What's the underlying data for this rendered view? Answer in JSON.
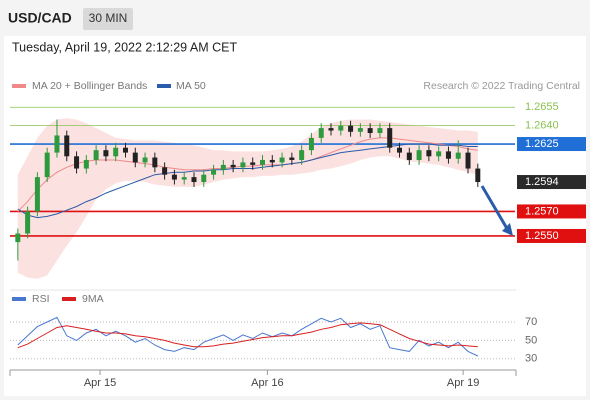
{
  "header": {
    "symbol": "USD/CAD",
    "timeframe": "30 MIN",
    "date": "Tuesday, April 19, 2022 2:12:29 AM CET"
  },
  "chart_data": [
    {
      "type": "candlestick",
      "credit": "Research © 2022 Trading Central",
      "xlim": [
        -0.8,
        50.8
      ],
      "ylim": [
        1.251,
        1.2665
      ],
      "up_color": "#2e9a3e",
      "down_color": "#222222",
      "open": [
        1.2545,
        1.2552,
        1.257,
        1.2598,
        1.2618,
        1.2632,
        1.2615,
        1.2605,
        1.2612,
        1.262,
        1.2615,
        1.2622,
        1.2618,
        1.261,
        1.2614,
        1.2606,
        1.26,
        1.2596,
        1.2598,
        1.2594,
        1.26,
        1.2604,
        1.2608,
        1.2606,
        1.261,
        1.2608,
        1.2612,
        1.261,
        1.2614,
        1.2612,
        1.262,
        1.263,
        1.2638,
        1.2636,
        1.264,
        1.2635,
        1.2638,
        1.2634,
        1.2638,
        1.2622,
        1.2618,
        1.2612,
        1.262,
        1.2615,
        1.2619,
        1.2613,
        1.2618,
        1.2605
      ],
      "high": [
        1.2556,
        1.2574,
        1.2602,
        1.2622,
        1.2645,
        1.2636,
        1.2619,
        1.2616,
        1.2624,
        1.2624,
        1.2626,
        1.2626,
        1.2622,
        1.2618,
        1.2618,
        1.261,
        1.2604,
        1.2602,
        1.2602,
        1.2604,
        1.2608,
        1.2612,
        1.2612,
        1.2614,
        1.2614,
        1.2616,
        1.2616,
        1.2618,
        1.2618,
        1.2624,
        1.2634,
        1.2642,
        1.2642,
        1.2644,
        1.2644,
        1.2642,
        1.2642,
        1.2642,
        1.2642,
        1.2626,
        1.2622,
        1.2624,
        1.2624,
        1.2623,
        1.2623,
        1.2628,
        1.2622,
        1.2609
      ],
      "low": [
        1.253,
        1.2548,
        1.2566,
        1.2594,
        1.2614,
        1.2611,
        1.2601,
        1.2601,
        1.2608,
        1.2611,
        1.2611,
        1.2614,
        1.2606,
        1.2606,
        1.2602,
        1.2596,
        1.2592,
        1.2592,
        1.259,
        1.259,
        1.2596,
        1.26,
        1.2602,
        1.2602,
        1.2604,
        1.2604,
        1.2606,
        1.2606,
        1.2608,
        1.2608,
        1.2616,
        1.2626,
        1.2632,
        1.2632,
        1.2631,
        1.2631,
        1.263,
        1.263,
        1.2618,
        1.2614,
        1.2608,
        1.2608,
        1.2611,
        1.2611,
        1.2609,
        1.2609,
        1.2601,
        1.259
      ],
      "close": [
        1.2552,
        1.257,
        1.2598,
        1.2618,
        1.2632,
        1.2615,
        1.2605,
        1.2612,
        1.262,
        1.2615,
        1.2622,
        1.2618,
        1.261,
        1.2614,
        1.2606,
        1.26,
        1.2596,
        1.2598,
        1.2594,
        1.26,
        1.2604,
        1.2608,
        1.2606,
        1.261,
        1.2608,
        1.2612,
        1.261,
        1.2614,
        1.2612,
        1.262,
        1.263,
        1.2638,
        1.2636,
        1.264,
        1.2635,
        1.2638,
        1.2634,
        1.2638,
        1.2622,
        1.2618,
        1.2612,
        1.262,
        1.2615,
        1.2619,
        1.2613,
        1.2618,
        1.2605,
        1.2594
      ],
      "series": [
        {
          "name": "MA 20 + Bollinger Bands",
          "color": "#f08a8a",
          "band_color": "#fbd9d9",
          "values": [
            1.257,
            1.2578,
            1.2588,
            1.2596,
            1.2602,
            1.2606,
            1.2609,
            1.2611,
            1.2612,
            1.2612,
            1.2612,
            1.2611,
            1.261,
            1.2609,
            1.2608,
            1.2606,
            1.2605,
            1.2604,
            1.2604,
            1.2604,
            1.2605,
            1.2605,
            1.2606,
            1.2607,
            1.2607,
            1.2608,
            1.2608,
            1.2608,
            1.2609,
            1.261,
            1.2612,
            1.2615,
            1.2618,
            1.2621,
            1.2624,
            1.2627,
            1.2629,
            1.263,
            1.263,
            1.2629,
            1.2628,
            1.2627,
            1.2626,
            1.2625,
            1.2624,
            1.2623,
            1.2621,
            1.262
          ],
          "upper": [
            1.26,
            1.2615,
            1.263,
            1.264,
            1.2645,
            1.2646,
            1.2645,
            1.2642,
            1.2638,
            1.2634,
            1.263,
            1.2629,
            1.2628,
            1.2628,
            1.2628,
            1.2627,
            1.2626,
            1.2625,
            1.2624,
            1.2622,
            1.262,
            1.262,
            1.2619,
            1.2619,
            1.2619,
            1.2619,
            1.262,
            1.2621,
            1.2623,
            1.2627,
            1.2633,
            1.2639,
            1.2642,
            1.2644,
            1.2645,
            1.2645,
            1.2645,
            1.2644,
            1.2643,
            1.2642,
            1.2641,
            1.264,
            1.2639,
            1.2638,
            1.2637,
            1.2636,
            1.2636,
            1.2635
          ],
          "lower": [
            1.252,
            1.2516,
            1.2515,
            1.2518,
            1.253,
            1.2542,
            1.2553,
            1.2566,
            1.258,
            1.2588,
            1.2593,
            1.2595,
            1.2595,
            1.2594,
            1.2592,
            1.2591,
            1.259,
            1.259,
            1.259,
            1.2592,
            1.2594,
            1.2596,
            1.2597,
            1.2598,
            1.2598,
            1.2599,
            1.2599,
            1.26,
            1.26,
            1.2601,
            1.2602,
            1.2604,
            1.2605,
            1.2607,
            1.2609,
            1.2612,
            1.2614,
            1.2615,
            1.2615,
            1.2613,
            1.2611,
            1.261,
            1.2609,
            1.2608,
            1.2606,
            1.2604,
            1.2602,
            1.26
          ]
        },
        {
          "name": "MA 50",
          "color": "#2a5caa",
          "values": [
            1.2572,
            1.2567,
            1.2565,
            1.2566,
            1.2568,
            1.2571,
            1.2574,
            1.2578,
            1.2581,
            1.2585,
            1.2588,
            1.2591,
            1.2594,
            1.2597,
            1.26,
            1.2601,
            1.2602,
            1.2602,
            1.2603,
            1.2603,
            1.2604,
            1.2604,
            1.2605,
            1.2605,
            1.2605,
            1.2606,
            1.2607,
            1.2608,
            1.2609,
            1.261,
            1.2612,
            1.2614,
            1.2616,
            1.2618,
            1.2619,
            1.262,
            1.2621,
            1.2622,
            1.2623,
            1.2624,
            1.2625,
            1.2625,
            1.2625,
            1.2624,
            1.2624,
            1.2624,
            1.2623,
            1.2623
          ]
        }
      ],
      "levels": [
        {
          "value": 1.2655,
          "label": "1.2655",
          "color": "#8cc152",
          "boxed": false
        },
        {
          "value": 1.264,
          "label": "1.2640",
          "color": "#8cc152",
          "boxed": false
        },
        {
          "value": 1.2625,
          "label": "1.2625",
          "color": "#1f6fd6",
          "boxed": true
        },
        {
          "value": 1.257,
          "label": "1.2570",
          "color": "#e01010",
          "boxed": true
        },
        {
          "value": 1.255,
          "label": "1.2550",
          "color": "#e01010",
          "boxed": true
        }
      ],
      "last": {
        "value": 1.2594,
        "label": "1.2594",
        "color": "#2a2a2a"
      }
    },
    {
      "type": "line",
      "xlim": [
        -0.8,
        50.8
      ],
      "ylim": [
        20,
        83
      ],
      "yticks": [
        70,
        50,
        30
      ],
      "xticks": [
        {
          "value": 8.4,
          "label": "Apr 15"
        },
        {
          "value": 25.5,
          "label": "Apr 16"
        },
        {
          "value": 45.5,
          "label": "Apr 19"
        }
      ],
      "series": [
        {
          "name": "RSI",
          "color": "#4a78d0",
          "values": [
            45,
            55,
            65,
            70,
            75,
            55,
            50,
            58,
            62,
            55,
            60,
            55,
            48,
            52,
            45,
            40,
            38,
            42,
            40,
            48,
            52,
            56,
            50,
            56,
            52,
            58,
            54,
            58,
            55,
            62,
            68,
            74,
            70,
            74,
            64,
            68,
            62,
            66,
            42,
            40,
            38,
            50,
            44,
            48,
            42,
            48,
            38,
            33
          ]
        },
        {
          "name": "9MA",
          "color": "#d82020",
          "values": [
            42,
            46,
            52,
            58,
            64,
            66,
            64,
            62,
            60,
            58,
            58,
            57,
            55,
            54,
            52,
            50,
            47,
            45,
            43,
            43,
            44,
            46,
            47,
            49,
            51,
            53,
            54,
            55,
            55,
            57,
            59,
            62,
            64,
            67,
            68,
            69,
            68,
            67,
            62,
            57,
            52,
            49,
            46,
            45,
            44,
            45,
            44,
            43
          ]
        }
      ]
    }
  ]
}
